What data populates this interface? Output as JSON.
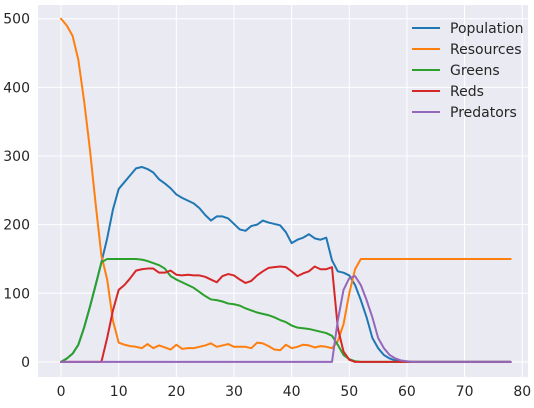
{
  "chart_data": {
    "type": "line",
    "title": "",
    "xlabel": "",
    "ylabel": "",
    "xlim": [
      -4,
      81
    ],
    "ylim": [
      -22,
      520
    ],
    "xticks": [
      0,
      10,
      20,
      30,
      40,
      50,
      60,
      70,
      80
    ],
    "yticks": [
      0,
      100,
      200,
      300,
      400,
      500
    ],
    "grid": true,
    "legend_position": "top-right",
    "background_color": "#eaeaf2",
    "series": [
      {
        "name": "Population",
        "color": "#1f77b4",
        "x": [
          0,
          1,
          2,
          3,
          4,
          5,
          6,
          7,
          8,
          9,
          10,
          11,
          12,
          13,
          14,
          15,
          16,
          17,
          18,
          19,
          20,
          21,
          22,
          23,
          24,
          25,
          26,
          27,
          28,
          29,
          30,
          31,
          32,
          33,
          34,
          35,
          36,
          37,
          38,
          39,
          40,
          41,
          42,
          43,
          44,
          45,
          46,
          47,
          48,
          49,
          50,
          51,
          52,
          53,
          54,
          55,
          56,
          57,
          58,
          59,
          60,
          61,
          62,
          63,
          64,
          65,
          66,
          67,
          68,
          69,
          70,
          71,
          72,
          73,
          74,
          75,
          76,
          77,
          78
        ],
        "values": [
          0,
          5,
          12,
          25,
          50,
          80,
          112,
          145,
          180,
          222,
          252,
          262,
          272,
          282,
          284,
          281,
          276,
          266,
          260,
          253,
          244,
          239,
          235,
          231,
          224,
          214,
          206,
          212,
          212,
          209,
          201,
          193,
          191,
          198,
          200,
          206,
          203,
          201,
          199,
          189,
          173,
          178,
          181,
          186,
          180,
          178,
          181,
          148,
          132,
          130,
          126,
          112,
          90,
          65,
          35,
          20,
          10,
          5,
          2,
          1,
          0,
          0,
          0,
          0,
          0,
          0,
          0,
          0,
          0,
          0,
          0,
          0,
          0,
          0,
          0,
          0,
          0,
          0,
          0
        ]
      },
      {
        "name": "Resources",
        "color": "#ff7f0e",
        "x": [
          0,
          1,
          2,
          3,
          4,
          5,
          6,
          7,
          8,
          9,
          10,
          11,
          12,
          13,
          14,
          15,
          16,
          17,
          18,
          19,
          20,
          21,
          22,
          23,
          24,
          25,
          26,
          27,
          28,
          29,
          30,
          31,
          32,
          33,
          34,
          35,
          36,
          37,
          38,
          39,
          40,
          41,
          42,
          43,
          44,
          45,
          46,
          47,
          48,
          49,
          50,
          51,
          52,
          53,
          54,
          55,
          56,
          57,
          58,
          59,
          60,
          61,
          62,
          63,
          64,
          65,
          66,
          67,
          68,
          69,
          70,
          71,
          72,
          73,
          74,
          75,
          76,
          77,
          78
        ],
        "values": [
          500,
          490,
          475,
          440,
          380,
          310,
          230,
          155,
          120,
          60,
          28,
          25,
          23,
          22,
          20,
          26,
          20,
          24,
          21,
          18,
          25,
          19,
          20,
          20,
          22,
          24,
          27,
          22,
          24,
          26,
          22,
          22,
          22,
          20,
          28,
          27,
          23,
          18,
          17,
          25,
          20,
          22,
          25,
          24,
          21,
          23,
          22,
          20,
          30,
          55,
          100,
          135,
          150,
          150,
          150,
          150,
          150,
          150,
          150,
          150,
          150,
          150,
          150,
          150,
          150,
          150,
          150,
          150,
          150,
          150,
          150,
          150,
          150,
          150,
          150,
          150,
          150,
          150,
          150
        ]
      },
      {
        "name": "Greens",
        "color": "#2ca02c",
        "x": [
          0,
          1,
          2,
          3,
          4,
          5,
          6,
          7,
          8,
          9,
          10,
          11,
          12,
          13,
          14,
          15,
          16,
          17,
          18,
          19,
          20,
          21,
          22,
          23,
          24,
          25,
          26,
          27,
          28,
          29,
          30,
          31,
          32,
          33,
          34,
          35,
          36,
          37,
          38,
          39,
          40,
          41,
          42,
          43,
          44,
          45,
          46,
          47,
          48,
          49,
          50,
          51,
          52,
          53,
          54,
          55,
          56,
          57,
          58,
          59,
          60,
          61,
          62,
          63,
          64,
          65,
          66,
          67,
          68,
          69,
          70,
          71,
          72,
          73,
          74,
          75,
          76,
          77,
          78
        ],
        "values": [
          0,
          5,
          12,
          25,
          50,
          80,
          112,
          145,
          150,
          150,
          150,
          150,
          150,
          150,
          149,
          147,
          144,
          141,
          136,
          125,
          120,
          116,
          112,
          108,
          102,
          96,
          91,
          90,
          88,
          85,
          84,
          82,
          78,
          75,
          72,
          70,
          68,
          65,
          61,
          58,
          53,
          50,
          49,
          48,
          46,
          44,
          42,
          38,
          25,
          10,
          4,
          1,
          0,
          0,
          0,
          0,
          0,
          0,
          0,
          0,
          0,
          0,
          0,
          0,
          0,
          0,
          0,
          0,
          0,
          0,
          0,
          0,
          0,
          0,
          0,
          0,
          0,
          0,
          0
        ]
      },
      {
        "name": "Reds",
        "color": "#d62728",
        "x": [
          0,
          1,
          2,
          3,
          4,
          5,
          6,
          7,
          8,
          9,
          10,
          11,
          12,
          13,
          14,
          15,
          16,
          17,
          18,
          19,
          20,
          21,
          22,
          23,
          24,
          25,
          26,
          27,
          28,
          29,
          30,
          31,
          32,
          33,
          34,
          35,
          36,
          37,
          38,
          39,
          40,
          41,
          42,
          43,
          44,
          45,
          46,
          47,
          48,
          49,
          50,
          51,
          52,
          53,
          54,
          55,
          56,
          57,
          58,
          59,
          60,
          61,
          62,
          63,
          64,
          65,
          66,
          67,
          68,
          69,
          70,
          71,
          72,
          73,
          74,
          75,
          76,
          77,
          78
        ],
        "values": [
          0,
          0,
          0,
          0,
          0,
          0,
          0,
          0,
          35,
          75,
          105,
          112,
          122,
          133,
          135,
          136,
          136,
          130,
          130,
          133,
          127,
          126,
          127,
          126,
          126,
          124,
          120,
          116,
          125,
          128,
          126,
          120,
          115,
          118,
          126,
          132,
          137,
          138,
          139,
          138,
          132,
          125,
          129,
          132,
          139,
          135,
          135,
          138,
          50,
          15,
          3,
          0,
          0,
          0,
          0,
          0,
          0,
          0,
          0,
          0,
          0,
          0,
          0,
          0,
          0,
          0,
          0,
          0,
          0,
          0,
          0,
          0,
          0,
          0,
          0,
          0,
          0,
          0,
          0
        ]
      },
      {
        "name": "Predators",
        "color": "#9467bd",
        "x": [
          0,
          1,
          2,
          3,
          4,
          5,
          6,
          7,
          8,
          9,
          10,
          11,
          12,
          13,
          14,
          15,
          16,
          17,
          18,
          19,
          20,
          21,
          22,
          23,
          24,
          25,
          26,
          27,
          28,
          29,
          30,
          31,
          32,
          33,
          34,
          35,
          36,
          37,
          38,
          39,
          40,
          41,
          42,
          43,
          44,
          45,
          46,
          47,
          48,
          49,
          50,
          51,
          52,
          53,
          54,
          55,
          56,
          57,
          58,
          59,
          60,
          61,
          62,
          63,
          64,
          65,
          66,
          67,
          68,
          69,
          70,
          71,
          72,
          73,
          74,
          75,
          76,
          77,
          78
        ],
        "values": [
          0,
          0,
          0,
          0,
          0,
          0,
          0,
          0,
          0,
          0,
          0,
          0,
          0,
          0,
          0,
          0,
          0,
          0,
          0,
          0,
          0,
          0,
          0,
          0,
          0,
          0,
          0,
          0,
          0,
          0,
          0,
          0,
          0,
          0,
          0,
          0,
          0,
          0,
          0,
          0,
          0,
          0,
          0,
          0,
          0,
          0,
          0,
          0,
          60,
          105,
          122,
          125,
          112,
          90,
          65,
          35,
          20,
          10,
          5,
          2,
          1,
          0,
          0,
          0,
          0,
          0,
          0,
          0,
          0,
          0,
          0,
          0,
          0,
          0,
          0,
          0,
          0,
          0,
          0
        ]
      }
    ]
  }
}
